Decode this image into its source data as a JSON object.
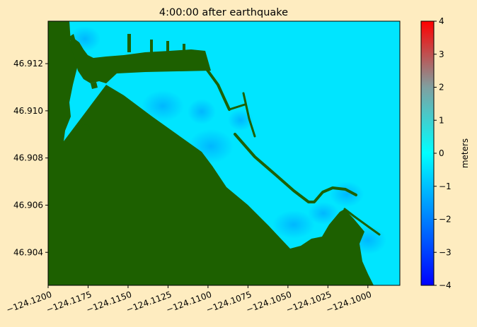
{
  "chart_data": {
    "type": "heatmap",
    "title": "4:00:00 after earthquake",
    "x_ticks": [
      "−124.1200",
      "−124.1175",
      "−124.1150",
      "−124.1125",
      "−124.1100",
      "−124.1075",
      "−124.1050",
      "−124.1025",
      "−124.1000"
    ],
    "x_tick_values": [
      -124.12,
      -124.1175,
      -124.115,
      -124.1125,
      -124.11,
      -124.1075,
      -124.105,
      -124.1025,
      -124.1
    ],
    "y_ticks": [
      "46.904",
      "46.906",
      "46.908",
      "46.910",
      "46.912"
    ],
    "y_tick_values": [
      46.904,
      46.906,
      46.908,
      46.91,
      46.912
    ],
    "xlim": [
      -124.12,
      -124.098
    ],
    "ylim": [
      46.9026,
      46.9138
    ],
    "colorbar": {
      "label": "meters",
      "min": -4,
      "max": 4,
      "ticks": [
        "4",
        "3",
        "2",
        "1",
        "0",
        "−1",
        "−2",
        "−3",
        "−4"
      ],
      "tick_values": [
        4,
        3,
        2,
        1,
        0,
        -1,
        -2,
        -3,
        -4
      ],
      "colors": [
        "#0000ff",
        "#00ffff",
        "#ff0000"
      ]
    },
    "land_color": "#1d6000",
    "water_color": "#00e5ff",
    "grid": false
  }
}
